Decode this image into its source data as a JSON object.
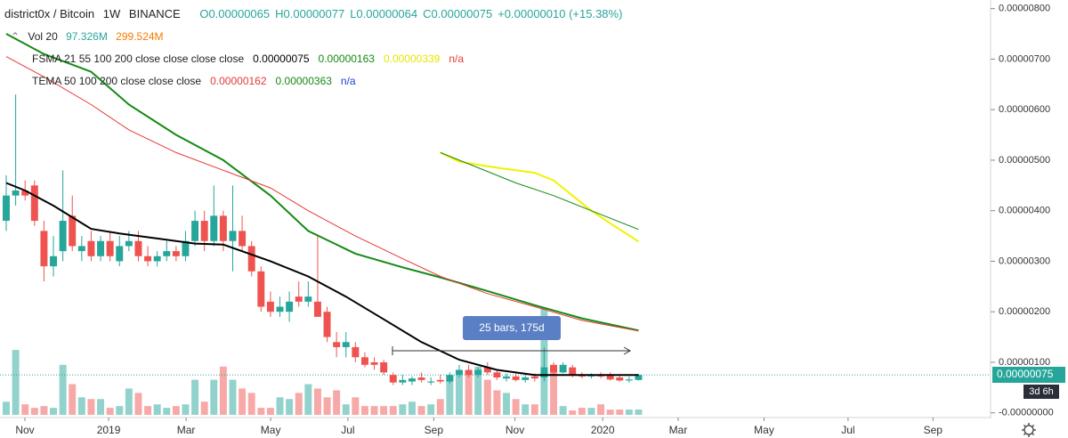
{
  "header": {
    "symbol": "district0x / Bitcoin",
    "interval": "1W",
    "exchange": "BINANCE",
    "ohlc": [
      "O0.00000065",
      "H0.00000077",
      "L0.00000064",
      "C0.00000075",
      "+0.00000010 (+15.38%)"
    ],
    "volume_legend": {
      "label": "Vol 20",
      "values": [
        "97.326M",
        "299.524M"
      ]
    },
    "indicators": [
      {
        "label": "FSMA 21 55 100 200 close close close close",
        "values": [
          "0.00000075",
          "0.00000163",
          "0.00000339",
          "n/a"
        ],
        "colors": [
          "#000000",
          "#138a13",
          "#e6e600",
          "#e53935"
        ]
      },
      {
        "label": "TEMA 50 100 200 close close close",
        "values": [
          "0.00000162",
          "0.00000363",
          "n/a"
        ],
        "colors": [
          "#e53935",
          "#138a13",
          "#1a3fd6"
        ]
      }
    ]
  },
  "measure": {
    "label": "25 bars, 175d"
  },
  "chart_data": {
    "type": "candlestick",
    "xlim": [
      -0.66,
      104.3
    ],
    "xticks": [
      {
        "value": 1.98,
        "label": "Nov"
      },
      {
        "value": 10.85,
        "label": "2019"
      },
      {
        "value": 19.06,
        "label": "Mar"
      },
      {
        "value": 28.02,
        "label": "May"
      },
      {
        "value": 36.2,
        "label": "Jul"
      },
      {
        "value": 45.3,
        "label": "Sep"
      },
      {
        "value": 53.9,
        "label": "Nov"
      },
      {
        "value": 63.2,
        "label": "2020"
      },
      {
        "value": 71.2,
        "label": "Mar"
      },
      {
        "value": 80.3,
        "label": "May"
      },
      {
        "value": 89.2,
        "label": "Jul"
      },
      {
        "value": 98.2,
        "label": "Sep"
      }
    ],
    "ylim": [
      -4e-08,
      8.17e-06
    ],
    "yticks": [
      {
        "value": 8e-06,
        "label": "0.00000800"
      },
      {
        "value": 7e-06,
        "label": "0.00000700"
      },
      {
        "value": 6e-06,
        "label": "0.00000600"
      },
      {
        "value": 5e-06,
        "label": "0.00000500"
      },
      {
        "value": 4e-06,
        "label": "0.00000400"
      },
      {
        "value": 3e-06,
        "label": "0.00000300"
      },
      {
        "value": 2e-06,
        "label": "0.00000200"
      },
      {
        "value": 1e-06,
        "label": "0.00000100"
      },
      {
        "value": 0,
        "label": "-0.00000000"
      }
    ],
    "up_color": "#26a69a",
    "down_color": "#ef5350",
    "candles": {
      "open": [
        3.8e-06,
        4.3e-06,
        4.4e-06,
        4.5e-06,
        3.6e-06,
        2.9e-06,
        3.2e-06,
        3.9e-06,
        3.2e-06,
        3.4e-06,
        3.1e-06,
        3.4e-06,
        3e-06,
        3.3e-06,
        3.4e-06,
        3.1e-06,
        3e-06,
        3.1e-06,
        3.2e-06,
        3.1e-06,
        3.4e-06,
        3.8e-06,
        3.4e-06,
        3.9e-06,
        3.4e-06,
        3.6e-06,
        3.3e-06,
        2.8e-06,
        2.2e-06,
        2e-06,
        2e-06,
        2.3e-06,
        2.2e-06,
        2.2e-06,
        2e-06,
        1.4e-06,
        1.3e-06,
        1.3e-06,
        1.1e-06,
        1e-06,
        1e-06,
        7.5e-07,
        6e-07,
        6.2e-07,
        7e-07,
        6e-07,
        6.5e-07,
        6.2e-07,
        7.5e-07,
        8.5e-07,
        7.5e-07,
        9e-07,
        8e-07,
        6.8e-07,
        7.2e-07,
        6.5e-07,
        7.2e-07,
        7e-07,
        9.5e-07,
        8e-07,
        9e-07,
        7.5e-07,
        7.2e-07,
        7.5e-07,
        7.4e-07,
        7e-07,
        6.4e-07,
        6.5e-07
      ],
      "high": [
        4.7e-06,
        6.3e-06,
        4.6e-06,
        4.6e-06,
        3.8e-06,
        3.5e-06,
        4.8e-06,
        4.3e-06,
        3.5e-06,
        3.6e-06,
        3.5e-06,
        3.6e-06,
        3.5e-06,
        3.6e-06,
        3.6e-06,
        3.3e-06,
        3.2e-06,
        3.4e-06,
        3.3e-06,
        3.6e-06,
        4e-06,
        4e-06,
        4.5e-06,
        4e-06,
        4.5e-06,
        3.9e-06,
        3.4e-06,
        2.9e-06,
        2.4e-06,
        2.3e-06,
        2.4e-06,
        2.6e-06,
        2.6e-06,
        3.5e-06,
        2.1e-06,
        1.6e-06,
        1.6e-06,
        1.4e-06,
        1.2e-06,
        1.1e-06,
        1.05e-06,
        8e-07,
        7.5e-07,
        7.2e-07,
        8e-07,
        7e-07,
        7.5e-07,
        8e-07,
        9.5e-07,
        9.5e-07,
        9e-07,
        1e-06,
        8.5e-07,
        7.8e-07,
        7.8e-07,
        7.5e-07,
        7.8e-07,
        1.3e-06,
        1e-06,
        1e-06,
        9.5e-07,
        8e-07,
        7.8e-07,
        8e-07,
        8e-07,
        7.4e-07,
        7.2e-07,
        7.7e-07
      ],
      "low": [
        3.6e-06,
        4.1e-06,
        4.2e-06,
        3.7e-06,
        2.6e-06,
        2.7e-06,
        3e-06,
        3.2e-06,
        3e-06,
        3e-06,
        3e-06,
        3e-06,
        2.9e-06,
        3.2e-06,
        3e-06,
        2.9e-06,
        2.9e-06,
        3e-06,
        3e-06,
        3e-06,
        3.3e-06,
        3.2e-06,
        3.3e-06,
        3.2e-06,
        2.8e-06,
        3.2e-06,
        2.7e-06,
        2e-06,
        1.9e-06,
        1.9e-06,
        1.8e-06,
        2.1e-06,
        2.1e-06,
        1.9e-06,
        1.4e-06,
        1.1e-06,
        1.1e-06,
        1e-06,
        9e-07,
        8.5e-07,
        7.5e-07,
        5.5e-07,
        5.5e-07,
        5.5e-07,
        6e-07,
        5.5e-07,
        5.8e-07,
        5.8e-07,
        7e-07,
        7e-07,
        7e-07,
        7.5e-07,
        6.5e-07,
        6.2e-07,
        6.2e-07,
        6e-07,
        6.2e-07,
        6.2e-07,
        7.5e-07,
        7.8e-07,
        7e-07,
        6.8e-07,
        6.8e-07,
        6.8e-07,
        6.4e-07,
        6.2e-07,
        6e-07,
        6.4e-07
      ],
      "close": [
        4.3e-06,
        4.4e-06,
        4.3e-06,
        3.8e-06,
        2.9e-06,
        3.1e-06,
        3.8e-06,
        3.3e-06,
        3.3e-06,
        3.1e-06,
        3.4e-06,
        3.1e-06,
        3.3e-06,
        3.4e-06,
        3.1e-06,
        3e-06,
        3.1e-06,
        3.2e-06,
        3.1e-06,
        3.4e-06,
        3.8e-06,
        3.4e-06,
        3.9e-06,
        3.4e-06,
        3.6e-06,
        3.3e-06,
        2.8e-06,
        2.1e-06,
        2e-06,
        2.1e-06,
        2.2e-06,
        2.2e-06,
        2.3e-06,
        1.9e-06,
        1.5e-06,
        1.3e-06,
        1.4e-06,
        1.1e-06,
        9.5e-07,
        9.5e-07,
        8e-07,
        6e-07,
        6.5e-07,
        6.8e-07,
        6.5e-07,
        6.2e-07,
        6.2e-07,
        7.5e-07,
        8.5e-07,
        7.5e-07,
        8.5e-07,
        8e-07,
        7e-07,
        7.2e-07,
        6.5e-07,
        7e-07,
        6.8e-07,
        9e-07,
        8e-07,
        9.5e-07,
        7.5e-07,
        7.2e-07,
        7.4e-07,
        7.2e-07,
        6.6e-07,
        6.4e-07,
        6.6e-07,
        7.5e-07
      ]
    },
    "volume": {
      "ylim": [
        0,
        7565
      ],
      "up_color": "rgba(38,166,154,0.5)",
      "down_color": "rgba(239,83,80,0.5)",
      "values": [
        240,
        1184,
        192,
        128,
        160,
        128,
        912,
        560,
        320,
        288,
        288,
        128,
        160,
        480,
        400,
        160,
        192,
        128,
        160,
        192,
        640,
        240,
        640,
        880,
        640,
        480,
        400,
        128,
        128,
        320,
        288,
        400,
        560,
        480,
        320,
        448,
        192,
        320,
        160,
        160,
        160,
        160,
        192,
        240,
        160,
        192,
        288,
        720,
        800,
        800,
        880,
        640,
        448,
        400,
        288,
        192,
        192,
        1952,
        880,
        160,
        80,
        128,
        128,
        192,
        96,
        96,
        96,
        97.326
      ]
    },
    "lines": [
      {
        "color": "#000000",
        "width": 2,
        "x": [
          0,
          2,
          5,
          9,
          12,
          16,
          20,
          23,
          28,
          32,
          36,
          40,
          44,
          48,
          52,
          56,
          60,
          64,
          67
        ],
        "values": [
          4.55e-06,
          4.4e-06,
          4.1e-06,
          3.64e-06,
          3.55e-06,
          3.45e-06,
          3.35e-06,
          3.33e-06,
          3e-06,
          2.7e-06,
          2.3e-06,
          1.85e-06,
          1.4e-06,
          1.05e-06,
          8.5e-07,
          7.5e-07,
          7.5e-07,
          7.5e-07,
          7.5e-07
        ]
      },
      {
        "color": "#138a13",
        "width": 2,
        "x": [
          0,
          4,
          9,
          13,
          18,
          23,
          28,
          32,
          37,
          42,
          46,
          51,
          56,
          61,
          67
        ],
        "values": [
          7.5e-06,
          7.1e-06,
          6.75e-06,
          6.1e-06,
          5.5e-06,
          5e-06,
          4.3e-06,
          3.6e-06,
          3.15e-06,
          2.88e-06,
          2.68e-06,
          2.41e-06,
          2.13e-06,
          1.87e-06,
          1.63e-06
        ]
      },
      {
        "color": "#e53935",
        "width": 1,
        "x": [
          0,
          4,
          9,
          13,
          18,
          23,
          28,
          32,
          37,
          42,
          46,
          51,
          56,
          61,
          67
        ],
        "values": [
          7.05e-06,
          6.65e-06,
          6.1e-06,
          5.6e-06,
          5.15e-06,
          4.8e-06,
          4.45e-06,
          4e-06,
          3.5e-06,
          3.05e-06,
          2.7e-06,
          2.36e-06,
          2.1e-06,
          1.83e-06,
          1.62e-06
        ]
      },
      {
        "color": "#f2f200",
        "width": 2,
        "x": [
          46,
          48,
          52,
          56,
          58,
          60,
          62,
          64,
          67
        ],
        "values": [
          5.15e-06,
          4.97e-06,
          4.85e-06,
          4.75e-06,
          4.6e-06,
          4.3e-06,
          4e-06,
          3.75e-06,
          3.39e-06
        ]
      },
      {
        "color": "#138a13",
        "width": 1,
        "x": [
          46,
          50,
          54,
          58,
          62,
          67
        ],
        "values": [
          5.15e-06,
          4.85e-06,
          4.55e-06,
          4.3e-06,
          4e-06,
          3.63e-06
        ]
      }
    ],
    "price_label": "0.00000075",
    "countdown": "3d 6h"
  }
}
